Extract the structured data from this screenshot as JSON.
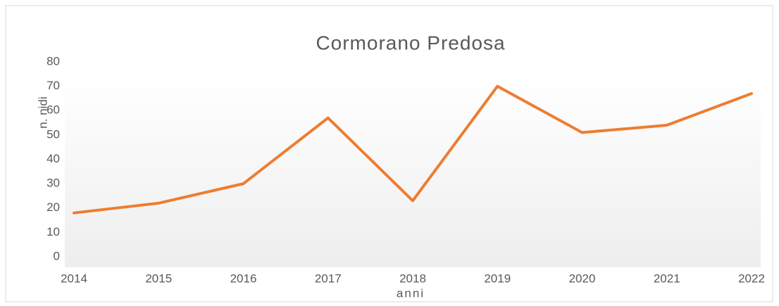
{
  "chart_data": {
    "type": "line",
    "title": "Cormorano Predosa",
    "x_label": "anni",
    "y_label": "n. nidi",
    "categories": [
      "2014",
      "2015",
      "2016",
      "2017",
      "2018",
      "2019",
      "2020",
      "2021",
      "2022"
    ],
    "values": [
      18,
      22,
      30,
      57,
      23,
      70,
      51,
      54,
      67
    ],
    "color": "#ed7d31",
    "ylim": [
      0,
      80
    ],
    "yticks": [
      0,
      10,
      20,
      30,
      40,
      50,
      60,
      70,
      80
    ],
    "grid": false
  }
}
